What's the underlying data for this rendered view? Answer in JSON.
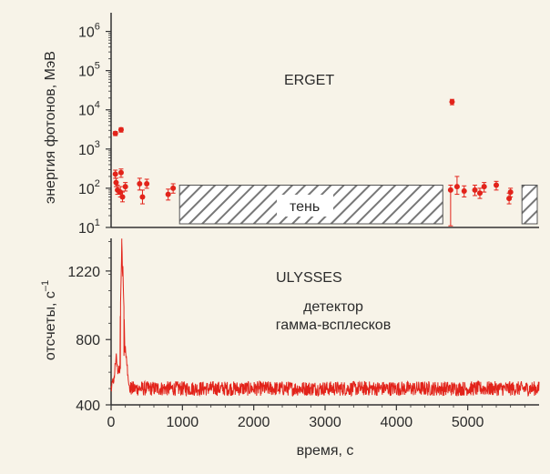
{
  "chart_data": [
    {
      "panel": "ERGET",
      "type": "scatter",
      "y_scale": "log",
      "ylabel": "энергия фотонов, МэВ",
      "ylim": [
        10,
        3000000
      ],
      "xlim": [
        0,
        6000
      ],
      "y_ticks": [
        {
          "value": 10,
          "base": "10",
          "exp": "1"
        },
        {
          "value": 100,
          "base": "10",
          "exp": "2"
        },
        {
          "value": 1000,
          "base": "10",
          "exp": "3"
        },
        {
          "value": 10000,
          "base": "10",
          "exp": "4"
        },
        {
          "value": 100000,
          "base": "10",
          "exp": "5"
        },
        {
          "value": 1000000,
          "base": "10",
          "exp": "6"
        }
      ],
      "annotations": {
        "instrument": "ERGET",
        "shadow": "тень"
      },
      "shadow_intervals": [
        [
          960,
          4650
        ],
        [
          5760,
          6000
        ]
      ],
      "points": [
        {
          "x": 60,
          "y": 2500,
          "err_lo": 300,
          "err_hi": 300
        },
        {
          "x": 140,
          "y": 3100,
          "err_lo": 400,
          "err_hi": 400
        },
        {
          "x": 60,
          "y": 230,
          "err_lo": 50,
          "err_hi": 60
        },
        {
          "x": 140,
          "y": 250,
          "err_lo": 60,
          "err_hi": 60
        },
        {
          "x": 70,
          "y": 140,
          "err_lo": 30,
          "err_hi": 40
        },
        {
          "x": 90,
          "y": 90,
          "err_lo": 20,
          "err_hi": 30
        },
        {
          "x": 130,
          "y": 80,
          "err_lo": 20,
          "err_hi": 30
        },
        {
          "x": 160,
          "y": 60,
          "err_lo": 15,
          "err_hi": 20
        },
        {
          "x": 200,
          "y": 110,
          "err_lo": 25,
          "err_hi": 30
        },
        {
          "x": 400,
          "y": 130,
          "err_lo": 40,
          "err_hi": 50
        },
        {
          "x": 440,
          "y": 60,
          "err_lo": 20,
          "err_hi": 30
        },
        {
          "x": 500,
          "y": 130,
          "err_lo": 30,
          "err_hi": 40
        },
        {
          "x": 800,
          "y": 70,
          "err_lo": 20,
          "err_hi": 25
        },
        {
          "x": 870,
          "y": 100,
          "err_lo": 25,
          "err_hi": 30
        },
        {
          "x": 4780,
          "y": 16000,
          "err_lo": 2500,
          "err_hi": 2500
        },
        {
          "x": 4760,
          "y": 90,
          "err_lo": 80,
          "err_hi": 30
        },
        {
          "x": 4850,
          "y": 110,
          "err_lo": 40,
          "err_hi": 90
        },
        {
          "x": 4950,
          "y": 85,
          "err_lo": 25,
          "err_hi": 30
        },
        {
          "x": 5100,
          "y": 90,
          "err_lo": 25,
          "err_hi": 30
        },
        {
          "x": 5170,
          "y": 75,
          "err_lo": 20,
          "err_hi": 25
        },
        {
          "x": 5230,
          "y": 110,
          "err_lo": 30,
          "err_hi": 30
        },
        {
          "x": 5400,
          "y": 120,
          "err_lo": 30,
          "err_hi": 30
        },
        {
          "x": 5580,
          "y": 55,
          "err_lo": 15,
          "err_hi": 20
        },
        {
          "x": 5600,
          "y": 80,
          "err_lo": 20,
          "err_hi": 20
        }
      ]
    },
    {
      "panel": "ULYSSES",
      "type": "line",
      "ylabel": "отсчеты, с",
      "ylabel_sup": "–1",
      "xlabel": "время, с",
      "xlim": [
        0,
        6000
      ],
      "ylim": [
        400,
        1420
      ],
      "y_ticks": [
        400,
        800,
        1220
      ],
      "x_ticks": [
        0,
        1000,
        2000,
        3000,
        4000,
        5000
      ],
      "annotations": {
        "instrument": "ULYSSES",
        "detector_line1": "детектор",
        "detector_line2": "гамма-всплесков"
      },
      "baseline": 500,
      "noise": 45,
      "peaks": [
        {
          "x": 40,
          "y": 560
        },
        {
          "x": 70,
          "y": 700
        },
        {
          "x": 110,
          "y": 640
        },
        {
          "x": 130,
          "y": 620
        },
        {
          "x": 150,
          "y": 1400
        },
        {
          "x": 165,
          "y": 1250
        },
        {
          "x": 180,
          "y": 700
        },
        {
          "x": 200,
          "y": 760
        },
        {
          "x": 220,
          "y": 650
        }
      ],
      "color": "#e2231a"
    }
  ]
}
